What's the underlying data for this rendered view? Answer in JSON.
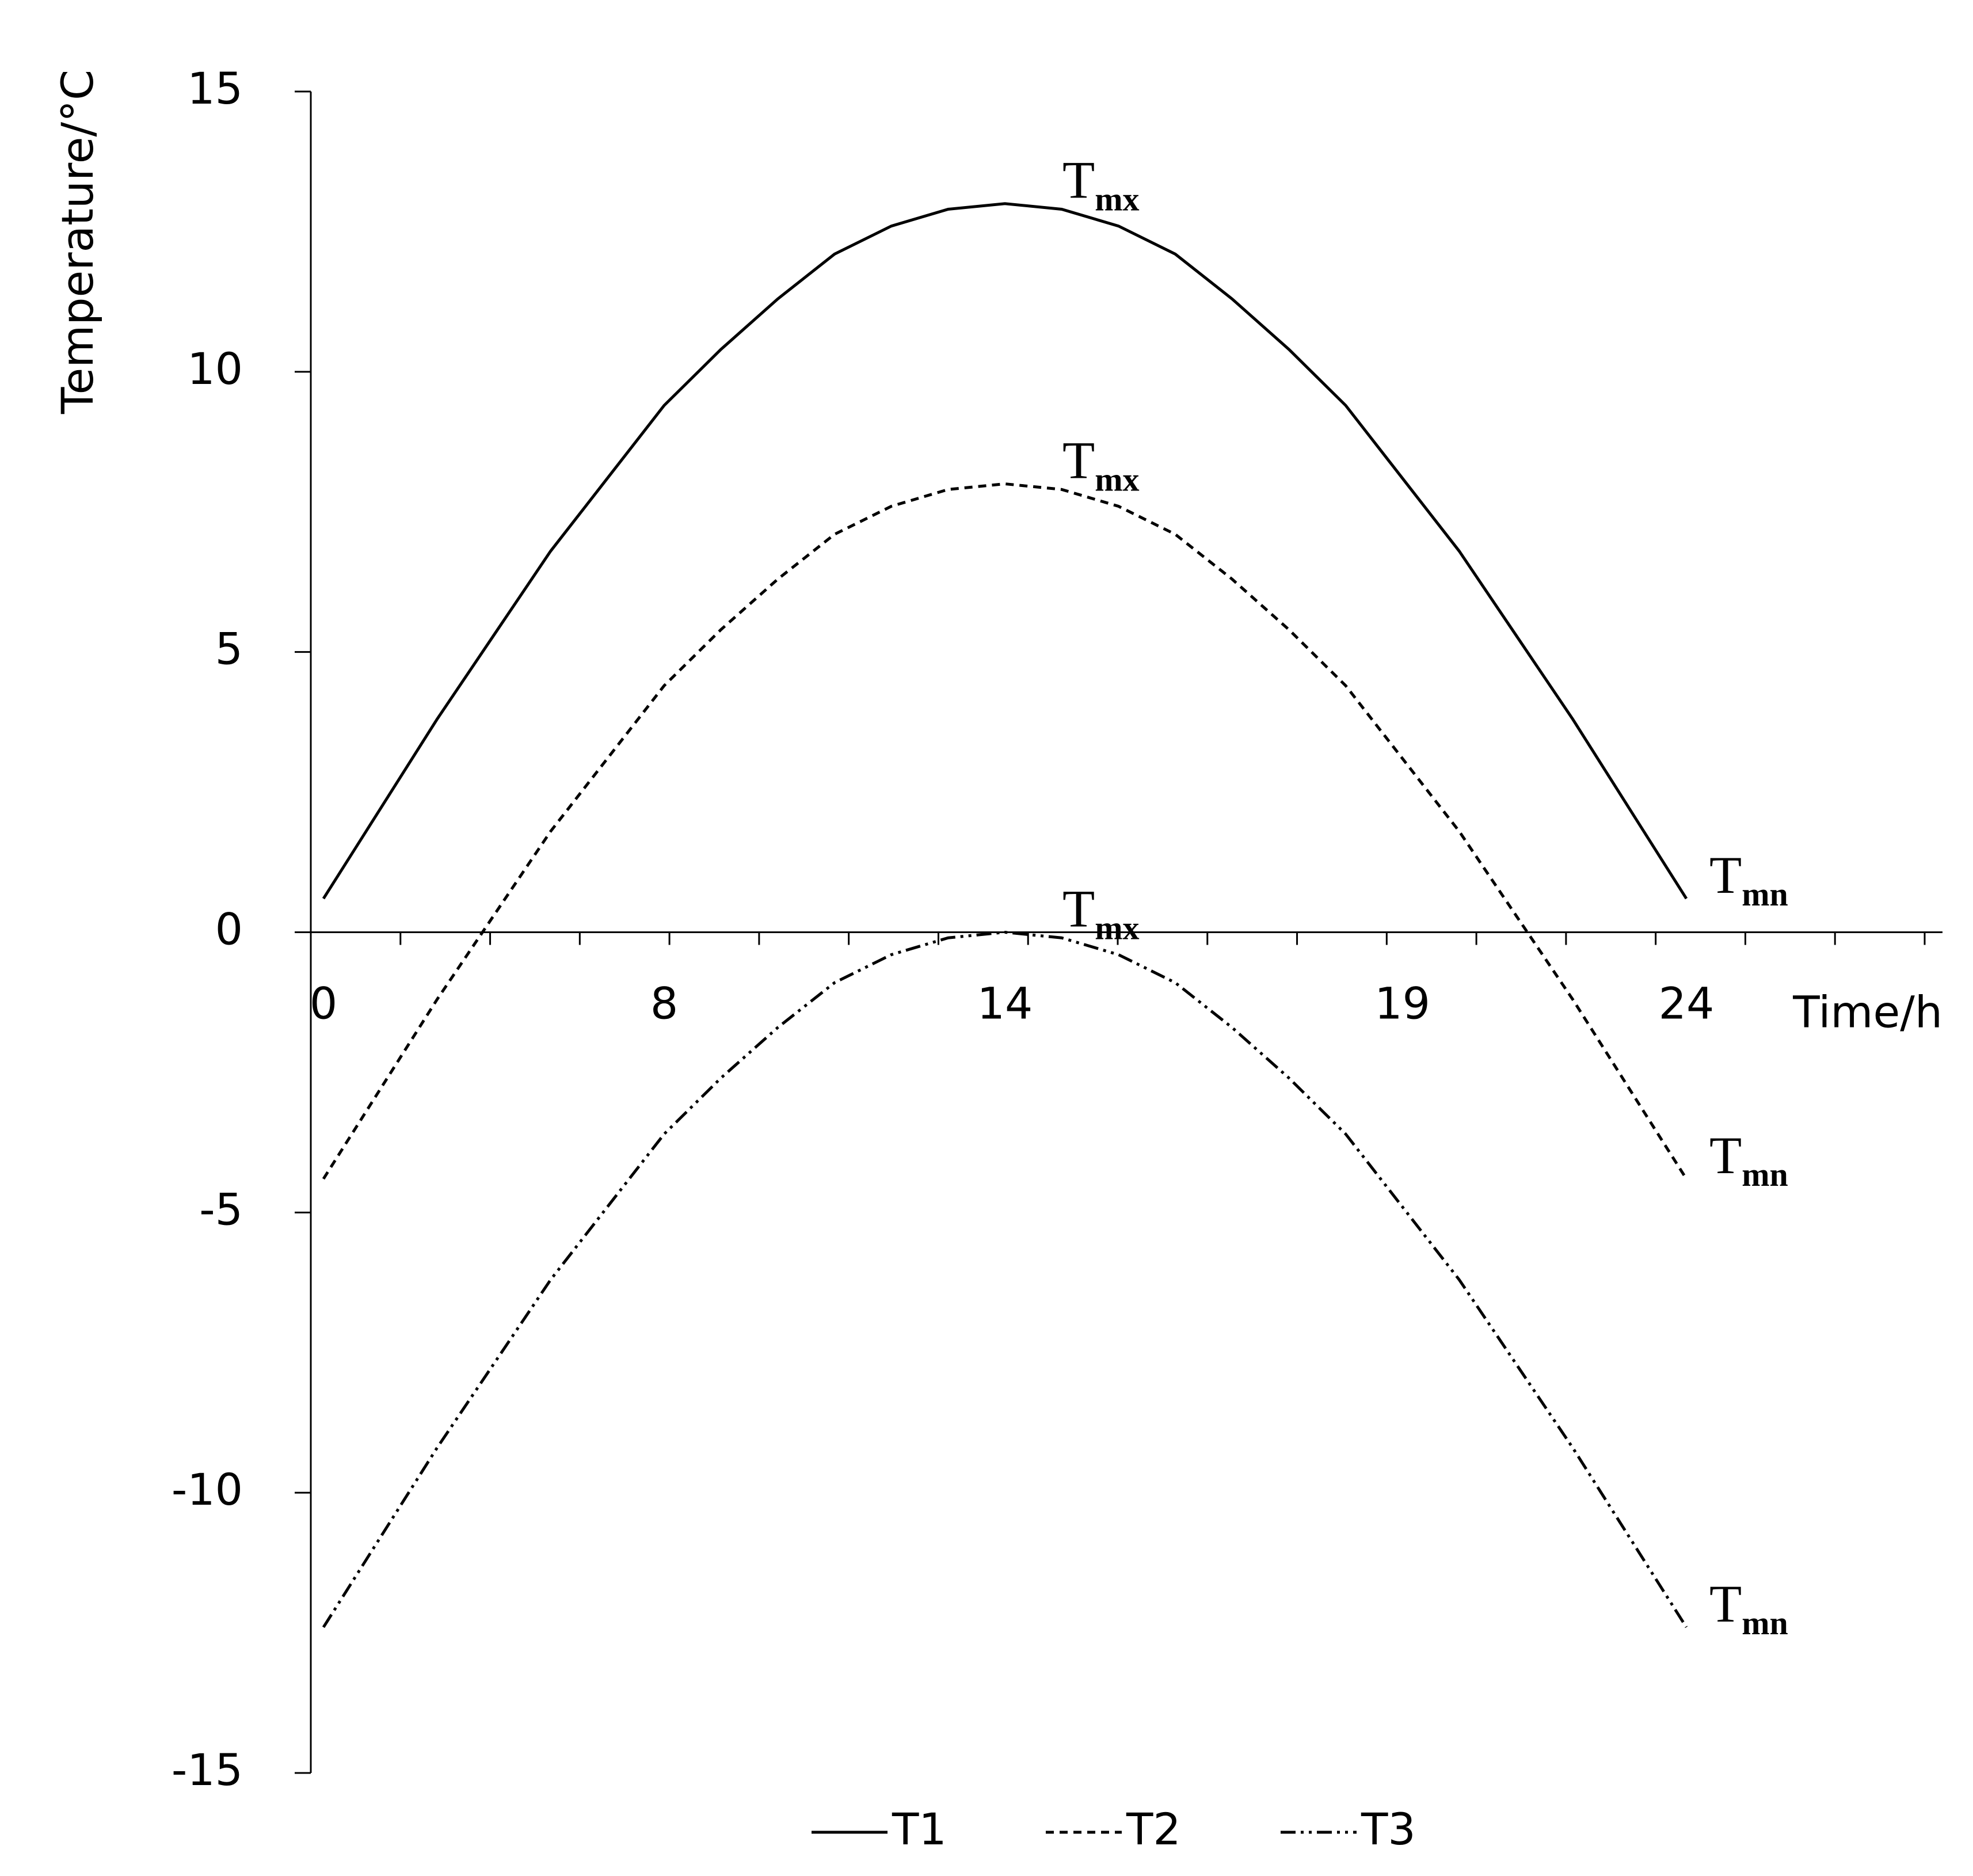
{
  "chart_data": {
    "type": "line",
    "y_label": "Temperature/°C",
    "x_label": "Time/h",
    "categories": [
      "0",
      null,
      null,
      null,
      null,
      null,
      "8",
      null,
      null,
      null,
      null,
      null,
      "14",
      null,
      null,
      null,
      null,
      null,
      null,
      "19",
      null,
      null,
      null,
      null,
      "24"
    ],
    "ylim": [
      -15,
      15
    ],
    "yticks": [
      -15,
      -10,
      -5,
      0,
      5,
      10,
      15
    ],
    "grid": false,
    "legend": "bottom",
    "series": [
      {
        "name": "T1",
        "color": "#000000",
        "dash": "solid",
        "values": [
          0.6,
          2.2,
          3.8,
          5.3,
          6.8,
          8.1,
          9.4,
          10.4,
          11.3,
          12.1,
          12.6,
          12.9,
          13.0,
          12.9,
          12.6,
          12.1,
          11.3,
          10.4,
          9.4,
          8.1,
          6.8,
          5.3,
          3.8,
          2.2,
          0.6
        ],
        "peak_label": {
          "text": "T",
          "sub": "mx"
        },
        "end_label": {
          "text": "T",
          "sub": "mn"
        }
      },
      {
        "name": "T2",
        "color": "#000000",
        "dash": "dashed",
        "values": [
          -4.4,
          -2.8,
          -1.2,
          0.3,
          1.8,
          3.1,
          4.4,
          5.4,
          6.3,
          7.1,
          7.6,
          7.9,
          8.0,
          7.9,
          7.6,
          7.1,
          6.3,
          5.4,
          4.4,
          3.1,
          1.8,
          0.3,
          -1.2,
          -2.8,
          -4.4
        ],
        "peak_label": {
          "text": "T",
          "sub": "mx"
        },
        "end_label": {
          "text": "T",
          "sub": "mn"
        }
      },
      {
        "name": "T3",
        "color": "#000000",
        "dash": "dashdotdot",
        "values": [
          -12.4,
          -10.8,
          -9.2,
          -7.7,
          -6.2,
          -4.9,
          -3.6,
          -2.6,
          -1.7,
          -0.9,
          -0.4,
          -0.1,
          0.0,
          -0.1,
          -0.4,
          -0.9,
          -1.7,
          -2.6,
          -3.6,
          -4.9,
          -6.2,
          -7.7,
          -9.2,
          -10.8,
          -12.4
        ],
        "peak_label": {
          "text": "T",
          "sub": "mx"
        },
        "end_label": {
          "text": "T",
          "sub": "mn"
        }
      }
    ]
  }
}
